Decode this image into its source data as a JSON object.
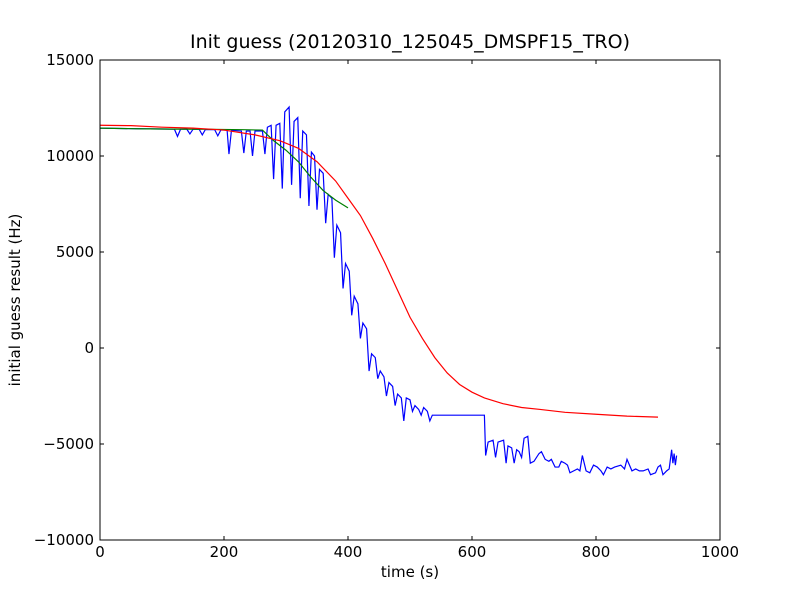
{
  "chart_data": {
    "type": "line",
    "title": "Init guess (20120310_125045_DMSPF15_TRO)",
    "xlabel": "time (s)",
    "ylabel": "initial guess result (Hz)",
    "xlim": [
      0,
      1000
    ],
    "ylim": [
      -10000,
      15000
    ],
    "x_ticks": [
      0,
      200,
      400,
      600,
      800,
      1000
    ],
    "y_ticks": [
      -10000,
      -5000,
      0,
      5000,
      10000,
      15000
    ],
    "x_tick_labels": [
      "0",
      "200",
      "400",
      "600",
      "800",
      "1000"
    ],
    "y_tick_labels": [
      "−10000",
      "−5000",
      "0",
      "5000",
      "10000",
      "15000"
    ],
    "grid": false,
    "legend": "none",
    "series": [
      {
        "color": "#0000ff",
        "points": [
          [
            0,
            11450
          ],
          [
            60,
            11420
          ],
          [
            120,
            11400
          ],
          [
            125,
            11020
          ],
          [
            130,
            11400
          ],
          [
            140,
            11400
          ],
          [
            145,
            11150
          ],
          [
            150,
            11390
          ],
          [
            160,
            11390
          ],
          [
            165,
            11100
          ],
          [
            170,
            11380
          ],
          [
            185,
            11370
          ],
          [
            190,
            11050
          ],
          [
            195,
            11360
          ],
          [
            205,
            11350
          ],
          [
            208,
            10100
          ],
          [
            212,
            11340
          ],
          [
            228,
            11300
          ],
          [
            232,
            10150
          ],
          [
            236,
            11300
          ],
          [
            242,
            11300
          ],
          [
            246,
            10000
          ],
          [
            250,
            11300
          ],
          [
            262,
            11300
          ],
          [
            266,
            10100
          ],
          [
            270,
            11500
          ],
          [
            276,
            11600
          ],
          [
            280,
            8800
          ],
          [
            284,
            11600
          ],
          [
            290,
            11700
          ],
          [
            294,
            8300
          ],
          [
            298,
            12300
          ],
          [
            305,
            12550
          ],
          [
            309,
            8500
          ],
          [
            313,
            11800
          ],
          [
            319,
            12000
          ],
          [
            323,
            7800
          ],
          [
            327,
            11300
          ],
          [
            333,
            11100
          ],
          [
            337,
            7400
          ],
          [
            341,
            10200
          ],
          [
            346,
            10000
          ],
          [
            350,
            7200
          ],
          [
            354,
            9300
          ],
          [
            360,
            9100
          ],
          [
            364,
            6500
          ],
          [
            368,
            8000
          ],
          [
            374,
            7800
          ],
          [
            378,
            4700
          ],
          [
            382,
            6400
          ],
          [
            388,
            6000
          ],
          [
            392,
            3100
          ],
          [
            396,
            4400
          ],
          [
            402,
            4000
          ],
          [
            406,
            1700
          ],
          [
            410,
            2700
          ],
          [
            416,
            2300
          ],
          [
            420,
            500
          ],
          [
            424,
            1300
          ],
          [
            430,
            1000
          ],
          [
            434,
            -1200
          ],
          [
            438,
            -300
          ],
          [
            444,
            -500
          ],
          [
            448,
            -1600
          ],
          [
            452,
            -1200
          ],
          [
            458,
            -1500
          ],
          [
            462,
            -2500
          ],
          [
            466,
            -1800
          ],
          [
            472,
            -2000
          ],
          [
            476,
            -3000
          ],
          [
            480,
            -2400
          ],
          [
            486,
            -2600
          ],
          [
            490,
            -3800
          ],
          [
            494,
            -2600
          ],
          [
            500,
            -2700
          ],
          [
            504,
            -3300
          ],
          [
            508,
            -3000
          ],
          [
            514,
            -3200
          ],
          [
            518,
            -3500
          ],
          [
            522,
            -3100
          ],
          [
            528,
            -3300
          ],
          [
            532,
            -3800
          ],
          [
            536,
            -3500
          ],
          [
            620,
            -3500
          ],
          [
            622,
            -5600
          ],
          [
            626,
            -4900
          ],
          [
            634,
            -4800
          ],
          [
            638,
            -5700
          ],
          [
            642,
            -4900
          ],
          [
            651,
            -4800
          ],
          [
            655,
            -6000
          ],
          [
            658,
            -5100
          ],
          [
            664,
            -5200
          ],
          [
            668,
            -6000
          ],
          [
            672,
            -5300
          ],
          [
            676,
            -5400
          ],
          [
            680,
            -5700
          ],
          [
            684,
            -4700
          ],
          [
            690,
            -4600
          ],
          [
            694,
            -6000
          ],
          [
            700,
            -5900
          ],
          [
            708,
            -5500
          ],
          [
            712,
            -5400
          ],
          [
            718,
            -5800
          ],
          [
            724,
            -5900
          ],
          [
            728,
            -5800
          ],
          [
            734,
            -6200
          ],
          [
            740,
            -6200
          ],
          [
            744,
            -5900
          ],
          [
            750,
            -6000
          ],
          [
            754,
            -6100
          ],
          [
            758,
            -6500
          ],
          [
            764,
            -6400
          ],
          [
            770,
            -6300
          ],
          [
            774,
            -6400
          ],
          [
            778,
            -5600
          ],
          [
            784,
            -6400
          ],
          [
            790,
            -6500
          ],
          [
            796,
            -6100
          ],
          [
            802,
            -6200
          ],
          [
            808,
            -6400
          ],
          [
            812,
            -6600
          ],
          [
            818,
            -6200
          ],
          [
            824,
            -6300
          ],
          [
            830,
            -6200
          ],
          [
            840,
            -6100
          ],
          [
            846,
            -6300
          ],
          [
            850,
            -5800
          ],
          [
            858,
            -6400
          ],
          [
            864,
            -6300
          ],
          [
            870,
            -6400
          ],
          [
            876,
            -6400
          ],
          [
            884,
            -6300
          ],
          [
            888,
            -6600
          ],
          [
            896,
            -6500
          ],
          [
            900,
            -6200
          ],
          [
            904,
            -6100
          ],
          [
            908,
            -6600
          ],
          [
            914,
            -6400
          ],
          [
            918,
            -6300
          ],
          [
            922,
            -5300
          ],
          [
            924,
            -6000
          ],
          [
            926,
            -5500
          ],
          [
            928,
            -6100
          ],
          [
            930,
            -5600
          ]
        ]
      },
      {
        "color": "#007f00",
        "points": [
          [
            0,
            11450
          ],
          [
            60,
            11420
          ],
          [
            120,
            11400
          ],
          [
            180,
            11390
          ],
          [
            230,
            11370
          ],
          [
            262,
            11350
          ],
          [
            280,
            10800
          ],
          [
            300,
            10300
          ],
          [
            320,
            9700
          ],
          [
            340,
            8900
          ],
          [
            360,
            8200
          ],
          [
            380,
            7700
          ],
          [
            400,
            7300
          ]
        ]
      },
      {
        "color": "#ff0000",
        "points": [
          [
            0,
            11600
          ],
          [
            50,
            11580
          ],
          [
            100,
            11500
          ],
          [
            150,
            11450
          ],
          [
            200,
            11350
          ],
          [
            250,
            11100
          ],
          [
            290,
            10800
          ],
          [
            320,
            10400
          ],
          [
            350,
            9700
          ],
          [
            380,
            8700
          ],
          [
            400,
            7800
          ],
          [
            420,
            6900
          ],
          [
            440,
            5700
          ],
          [
            460,
            4400
          ],
          [
            480,
            3000
          ],
          [
            500,
            1600
          ],
          [
            520,
            500
          ],
          [
            540,
            -500
          ],
          [
            560,
            -1300
          ],
          [
            580,
            -1900
          ],
          [
            600,
            -2300
          ],
          [
            620,
            -2600
          ],
          [
            650,
            -2900
          ],
          [
            680,
            -3100
          ],
          [
            710,
            -3200
          ],
          [
            750,
            -3350
          ],
          [
            800,
            -3450
          ],
          [
            850,
            -3550
          ],
          [
            900,
            -3600
          ]
        ]
      }
    ]
  }
}
